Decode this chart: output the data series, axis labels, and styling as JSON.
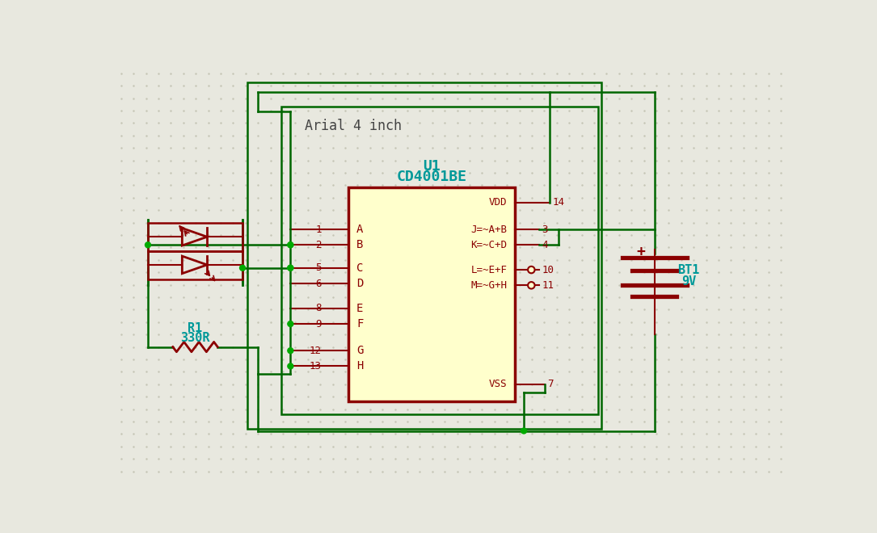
{
  "bg_color": "#e8e8df",
  "dot_color": "#c5c5b5",
  "wire_color": "#006600",
  "component_color": "#8b0000",
  "text_cyan": "#009999",
  "text_dark": "#444444",
  "ic_fill": "#ffffcc",
  "junction_color": "#00aa00",
  "title_text": "Arial 4 inch",
  "ic_ref": "U1",
  "ic_part": "CD4001BE",
  "bat_ref": "BT1",
  "bat_val": "9V",
  "res_ref": "R1",
  "res_val": "330R"
}
